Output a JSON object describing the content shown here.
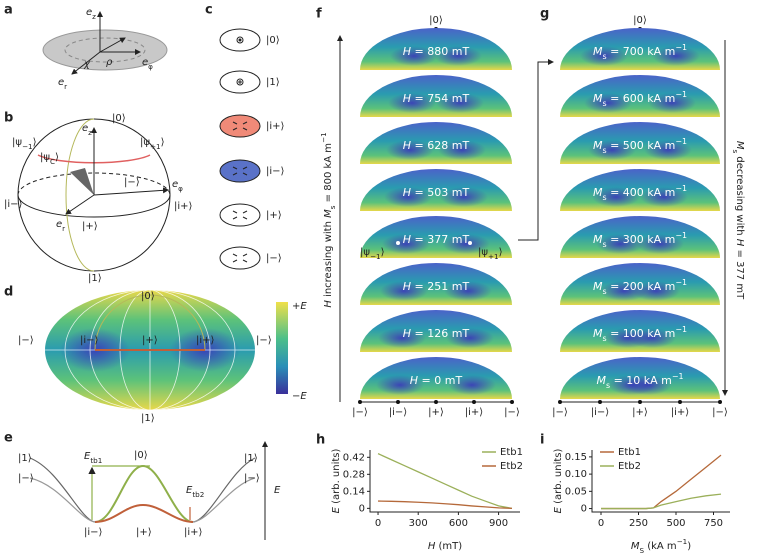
{
  "panel_labels": [
    "a",
    "b",
    "c",
    "d",
    "e",
    "f",
    "g",
    "h",
    "i"
  ],
  "a": {
    "labels": [
      [
        {
          "t": "e",
          "s": "i"
        },
        {
          "t": "z",
          "s": "sub"
        }
      ],
      [
        {
          "t": "e",
          "s": "i"
        },
        {
          "t": "φ",
          "s": "sub"
        }
      ],
      [
        {
          "t": "e",
          "s": "i"
        },
        {
          "t": "r",
          "s": "sub"
        }
      ],
      [
        {
          "t": "ρ",
          "s": "i"
        }
      ],
      [
        {
          "t": "χ",
          "s": "i"
        }
      ]
    ]
  },
  "b": {
    "labels": [
      "|0⟩",
      [
        {
          "t": "e",
          "s": "i"
        },
        {
          "t": "z",
          "s": "sub"
        }
      ],
      [
        {
          "t": "|ψ"
        },
        {
          "t": "−1",
          "s": "sub"
        },
        {
          "t": "⟩"
        }
      ],
      [
        {
          "t": "|ψ"
        },
        {
          "t": "+1",
          "s": "sub"
        },
        {
          "t": "⟩"
        }
      ],
      [
        {
          "t": "|ψ"
        },
        {
          "t": "C",
          "s": "sub"
        },
        {
          "t": "⟩"
        }
      ],
      "|−⟩",
      [
        {
          "t": "e",
          "s": "i"
        },
        {
          "t": "φ",
          "s": "sub"
        }
      ],
      "|i−⟩",
      "|i+⟩",
      [
        {
          "t": "e",
          "s": "i"
        },
        {
          "t": "r",
          "s": "sub"
        }
      ],
      "|+⟩",
      "|1⟩"
    ]
  },
  "c": {
    "states": [
      "|0⟩",
      "|1⟩",
      "|i+⟩",
      "|i−⟩",
      "|+⟩",
      "|−⟩"
    ]
  },
  "d": {
    "labels": [
      "|0⟩",
      "|1⟩",
      "|−⟩",
      "|i−⟩",
      "|+⟩",
      "|i+⟩",
      "|−⟩"
    ],
    "colorbar": [
      [
        {
          "t": "+"
        },
        {
          "t": "E",
          "s": "i"
        }
      ],
      [
        {
          "t": "−"
        },
        {
          "t": "E",
          "s": "i"
        }
      ]
    ]
  },
  "e": {
    "labels": [
      "|1⟩",
      "|−⟩",
      [
        {
          "t": "E",
          "s": "i"
        },
        {
          "t": "tb1",
          "s": "sub"
        }
      ],
      "|0⟩",
      [
        {
          "t": "E",
          "s": "i"
        },
        {
          "t": "tb2",
          "s": "sub"
        }
      ],
      "|1⟩",
      "|−⟩",
      "|i−⟩",
      "|+⟩",
      "|i+⟩",
      [
        {
          "t": "E",
          "s": "i"
        }
      ]
    ]
  },
  "f": {
    "axis_label": [
      {
        "t": "H",
        "s": "i"
      },
      {
        "t": " increasing with "
      },
      {
        "t": "M",
        "s": "i"
      },
      {
        "t": "s",
        "s": "sub"
      },
      {
        "t": " = 800 kA m"
      },
      {
        "t": "−1",
        "s": "sup"
      }
    ],
    "top": "|0⟩",
    "fields": [
      [
        {
          "t": "H",
          "s": "i"
        },
        {
          "t": " = 880 mT"
        }
      ],
      [
        {
          "t": "H",
          "s": "i"
        },
        {
          "t": " = 754 mT"
        }
      ],
      [
        {
          "t": "H",
          "s": "i"
        },
        {
          "t": " = 628 mT"
        }
      ],
      [
        {
          "t": "H",
          "s": "i"
        },
        {
          "t": " = 503 mT"
        }
      ],
      [
        {
          "t": "H",
          "s": "i"
        },
        {
          "t": " = 377 mT"
        }
      ],
      [
        {
          "t": "H",
          "s": "i"
        },
        {
          "t": " = 251 mT"
        }
      ],
      [
        {
          "t": "H",
          "s": "i"
        },
        {
          "t": " = 126 mT"
        }
      ],
      [
        {
          "t": "H",
          "s": "i"
        },
        {
          "t": " = 0 mT"
        }
      ]
    ],
    "psi": [
      [
        {
          "t": "|ψ"
        },
        {
          "t": "−1",
          "s": "sub"
        },
        {
          "t": "⟩"
        }
      ],
      [
        {
          "t": "|ψ"
        },
        {
          "t": "+1",
          "s": "sub"
        },
        {
          "t": "⟩"
        }
      ]
    ],
    "bottom": [
      "|−⟩",
      "|i−⟩",
      "|+⟩",
      "|i+⟩",
      "|−⟩"
    ]
  },
  "g": {
    "axis_label": [
      {
        "t": "M",
        "s": "i"
      },
      {
        "t": "s",
        "s": "sub"
      },
      {
        "t": " decreasing with "
      },
      {
        "t": "H",
        "s": "i"
      },
      {
        "t": " = 377 mT"
      }
    ],
    "top": "|0⟩",
    "fields": [
      [
        {
          "t": "M",
          "s": "i"
        },
        {
          "t": "s",
          "s": "sub"
        },
        {
          "t": " = 700 kA m"
        },
        {
          "t": "−1",
          "s": "sup"
        }
      ],
      [
        {
          "t": "M",
          "s": "i"
        },
        {
          "t": "s",
          "s": "sub"
        },
        {
          "t": " = 600 kA m"
        },
        {
          "t": "−1",
          "s": "sup"
        }
      ],
      [
        {
          "t": "M",
          "s": "i"
        },
        {
          "t": "s",
          "s": "sub"
        },
        {
          "t": " = 500 kA m"
        },
        {
          "t": "−1",
          "s": "sup"
        }
      ],
      [
        {
          "t": "M",
          "s": "i"
        },
        {
          "t": "s",
          "s": "sub"
        },
        {
          "t": " = 400 kA m"
        },
        {
          "t": "−1",
          "s": "sup"
        }
      ],
      [
        {
          "t": "M",
          "s": "i"
        },
        {
          "t": "s",
          "s": "sub"
        },
        {
          "t": " = 300 kA m"
        },
        {
          "t": "−1",
          "s": "sup"
        }
      ],
      [
        {
          "t": "M",
          "s": "i"
        },
        {
          "t": "s",
          "s": "sub"
        },
        {
          "t": " = 200 kA m"
        },
        {
          "t": "−1",
          "s": "sup"
        }
      ],
      [
        {
          "t": "M",
          "s": "i"
        },
        {
          "t": "s",
          "s": "sub"
        },
        {
          "t": " = 100 kA m"
        },
        {
          "t": "−1",
          "s": "sup"
        }
      ],
      [
        {
          "t": "M",
          "s": "i"
        },
        {
          "t": "s",
          "s": "sub"
        },
        {
          "t": " = 10 kA m"
        },
        {
          "t": "−1",
          "s": "sup"
        }
      ]
    ],
    "bottom": [
      "|−⟩",
      "|i−⟩",
      "|+⟩",
      "|i+⟩",
      "|−⟩"
    ]
  },
  "chart_data": [
    {
      "type": "line",
      "xlabel": [
        {
          "t": "H",
          "s": "i"
        },
        {
          "t": " (mT)"
        }
      ],
      "ylabel": [
        {
          "t": "E",
          "s": "i"
        },
        {
          "t": " (arb. units)"
        }
      ],
      "x": [
        0,
        100,
        200,
        300,
        400,
        500,
        600,
        700,
        800,
        900,
        1000
      ],
      "series": [
        {
          "name": "Etb1",
          "color": "#9bb05a",
          "values": [
            0.45,
            0.4,
            0.35,
            0.3,
            0.25,
            0.2,
            0.15,
            0.1,
            0.06,
            0.02,
            0.0
          ]
        },
        {
          "name": "Etb2",
          "color": "#b5693a",
          "values": [
            0.06,
            0.058,
            0.055,
            0.05,
            0.045,
            0.038,
            0.03,
            0.02,
            0.012,
            0.004,
            0.0
          ]
        }
      ],
      "xlim": [
        -60,
        1060
      ],
      "ylim": [
        -0.03,
        0.48
      ],
      "xticks": [
        0,
        300,
        600,
        900
      ],
      "yticks": [
        0,
        0.14,
        0.28,
        0.42
      ]
    },
    {
      "type": "line",
      "xlabel": [
        {
          "t": "M",
          "s": "i"
        },
        {
          "t": "S",
          "s": "sub"
        },
        {
          "t": " (kA m"
        },
        {
          "t": "−1",
          "s": "sup"
        },
        {
          "t": ")"
        }
      ],
      "ylabel": [
        {
          "t": "E",
          "s": "i"
        },
        {
          "t": " (arb. units)"
        }
      ],
      "x": [
        0,
        100,
        200,
        300,
        350,
        400,
        500,
        600,
        700,
        800
      ],
      "series": [
        {
          "name": "Etb1",
          "color": "#b5693a",
          "values": [
            0,
            0,
            0,
            0,
            0.002,
            0.02,
            0.05,
            0.085,
            0.12,
            0.155
          ]
        },
        {
          "name": "Etb2",
          "color": "#9bb05a",
          "values": [
            0,
            0,
            0,
            0,
            0.002,
            0.01,
            0.02,
            0.03,
            0.037,
            0.042
          ]
        }
      ],
      "xlim": [
        -60,
        860
      ],
      "ylim": [
        -0.01,
        0.17
      ],
      "xticks": [
        0,
        250,
        500,
        750
      ],
      "yticks": [
        0,
        0.05,
        {
          "value": 0.1,
          "label": "0.10"
        },
        0.15
      ]
    }
  ]
}
